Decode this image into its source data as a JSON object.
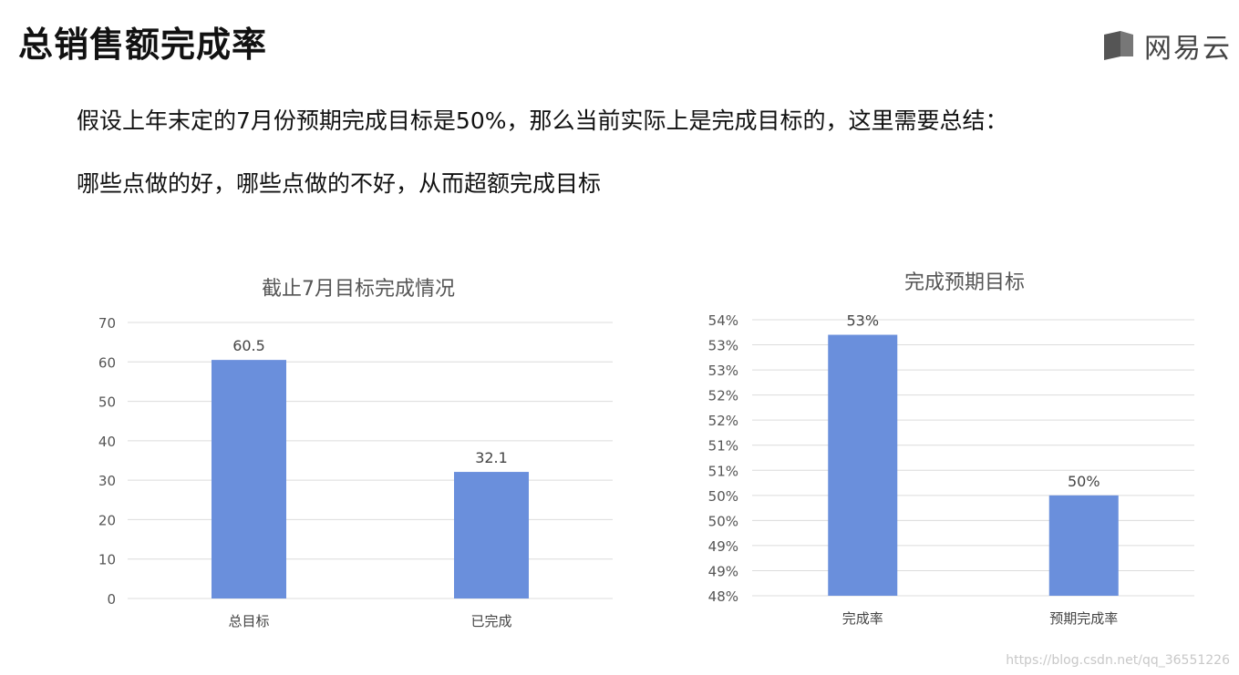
{
  "page": {
    "title": "总销售额完成率",
    "brand": "网易云",
    "line1": "假设上年末定的7月份预期完成目标是50%，那么当前实际上是完成目标的，这里需要总结：",
    "line2": "哪些点做的好，哪些点做的不好，从而超额完成目标",
    "watermark": "https://blog.csdn.net/qq_36551226"
  },
  "colors": {
    "bar": "#6a8fdc",
    "grid": "#dcdcdc",
    "tick": "#555555",
    "title": "#555555"
  },
  "chart_data": [
    {
      "type": "bar",
      "title": "截止7月目标完成情况",
      "categories": [
        "总目标",
        "已完成"
      ],
      "values": [
        60.5,
        32.1
      ],
      "data_labels": [
        "60.5",
        "32.1"
      ],
      "ylim": [
        0,
        70
      ],
      "yticks": [
        0,
        10,
        20,
        30,
        40,
        50,
        60,
        70
      ],
      "ytick_labels": [
        "0",
        "10",
        "20",
        "30",
        "40",
        "50",
        "60",
        "70"
      ],
      "grid": true,
      "legend": "none"
    },
    {
      "type": "bar",
      "title": "完成预期目标",
      "categories": [
        "完成率",
        "预期完成率"
      ],
      "values": [
        53.2,
        50
      ],
      "data_labels": [
        "53%",
        "50%"
      ],
      "ylim": [
        48,
        53.5
      ],
      "yticks": [
        48,
        48.5,
        49,
        49.5,
        50,
        50.5,
        51,
        51.5,
        52,
        52.5,
        53,
        53.5
      ],
      "ytick_labels": [
        "48%",
        "49%",
        "49%",
        "50%",
        "50%",
        "51%",
        "51%",
        "52%",
        "52%",
        "53%",
        "53%",
        "54%"
      ],
      "grid": true,
      "legend": "none"
    }
  ]
}
